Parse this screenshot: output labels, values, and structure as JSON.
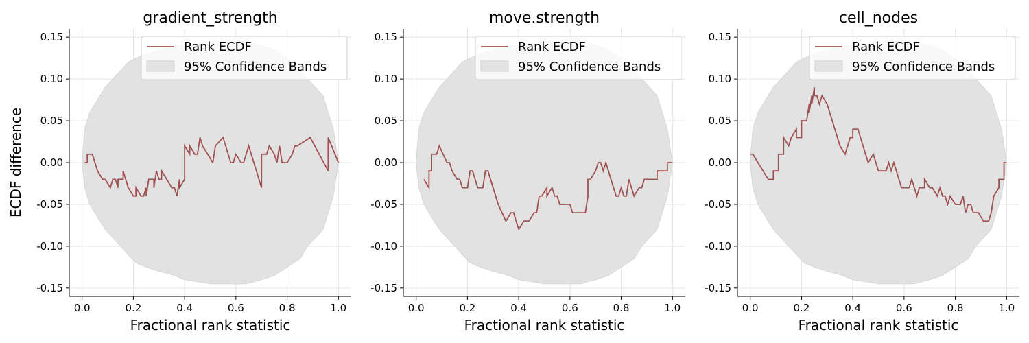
{
  "figure": {
    "ylabel": "ECDF difference"
  },
  "chart_data": [
    {
      "type": "line",
      "title": "gradient_strength",
      "xlabel": "Fractional rank statistic",
      "xlim": [
        -0.05,
        1.05
      ],
      "ylim": [
        -0.16,
        0.16
      ],
      "xticks": [
        0.0,
        0.2,
        0.4,
        0.6,
        0.8,
        1.0
      ],
      "yticks": [
        -0.15,
        -0.1,
        -0.05,
        0.0,
        0.05,
        0.1,
        0.15
      ],
      "grid": true,
      "legend": {
        "placement": "upper right",
        "entries": [
          "Rank ECDF",
          "95% Confidence Bands"
        ]
      },
      "series": [
        {
          "name": "Rank ECDF",
          "color": "#a05050",
          "x": [
            0.01,
            0.02,
            0.02,
            0.04,
            0.06,
            0.08,
            0.09,
            0.11,
            0.12,
            0.13,
            0.14,
            0.14,
            0.16,
            0.16,
            0.18,
            0.2,
            0.21,
            0.21,
            0.23,
            0.24,
            0.25,
            0.25,
            0.26,
            0.28,
            0.28,
            0.29,
            0.3,
            0.31,
            0.31,
            0.33,
            0.35,
            0.36,
            0.37,
            0.38,
            0.38,
            0.4,
            0.4,
            0.42,
            0.42,
            0.44,
            0.45,
            0.46,
            0.47,
            0.49,
            0.51,
            0.52,
            0.52,
            0.55,
            0.56,
            0.58,
            0.59,
            0.6,
            0.6,
            0.62,
            0.63,
            0.65,
            0.7,
            0.7,
            0.72,
            0.73,
            0.75,
            0.76,
            0.77,
            0.78,
            0.8,
            0.8,
            0.82,
            0.83,
            0.84,
            0.89,
            0.96,
            0.96,
            1.0
          ],
          "y": [
            0.0,
            0.0,
            0.01,
            0.01,
            -0.01,
            -0.02,
            -0.02,
            -0.03,
            -0.02,
            -0.02,
            -0.03,
            -0.02,
            -0.02,
            -0.01,
            -0.03,
            -0.04,
            -0.04,
            -0.03,
            -0.04,
            -0.04,
            -0.03,
            -0.04,
            -0.02,
            -0.02,
            -0.03,
            -0.01,
            -0.02,
            -0.02,
            -0.01,
            -0.02,
            -0.03,
            -0.03,
            -0.04,
            -0.02,
            -0.03,
            -0.02,
            0.02,
            0.01,
            0.02,
            0.01,
            0.01,
            0.03,
            0.02,
            0.01,
            0.0,
            0.02,
            0.02,
            0.03,
            0.02,
            0.0,
            0.0,
            0.01,
            0.01,
            0.0,
            0.0,
            0.02,
            -0.03,
            0.01,
            0.01,
            0.02,
            0.01,
            0.0,
            0.02,
            0.0,
            0.0,
            0.0,
            0.01,
            0.02,
            0.02,
            0.03,
            -0.01,
            0.03,
            0.0
          ]
        },
        {
          "name": "95% Confidence Bands",
          "color": "#d9d9d9",
          "x": [
            0.0,
            0.01,
            0.03,
            0.05,
            0.07,
            0.09,
            0.12,
            0.15,
            0.18,
            0.21,
            0.25,
            0.3,
            0.36,
            0.4,
            0.5,
            0.6,
            0.64,
            0.7,
            0.75,
            0.8,
            0.85,
            0.88,
            0.91,
            0.94,
            0.96,
            0.98,
            1.0
          ],
          "upper": [
            0.0,
            0.04,
            0.06,
            0.07,
            0.08,
            0.09,
            0.1,
            0.11,
            0.12,
            0.125,
            0.13,
            0.135,
            0.14,
            0.14,
            0.145,
            0.145,
            0.145,
            0.14,
            0.135,
            0.125,
            0.11,
            0.1,
            0.09,
            0.08,
            0.06,
            0.04,
            0.0
          ],
          "lower": [
            0.0,
            -0.03,
            -0.05,
            -0.06,
            -0.07,
            -0.08,
            -0.09,
            -0.1,
            -0.11,
            -0.12,
            -0.125,
            -0.13,
            -0.135,
            -0.14,
            -0.145,
            -0.145,
            -0.145,
            -0.14,
            -0.135,
            -0.125,
            -0.115,
            -0.1,
            -0.09,
            -0.08,
            -0.06,
            -0.04,
            0.0
          ]
        }
      ]
    },
    {
      "type": "line",
      "title": "move.strength",
      "xlabel": "Fractional rank statistic",
      "xlim": [
        -0.05,
        1.05
      ],
      "ylim": [
        -0.16,
        0.16
      ],
      "xticks": [
        0.0,
        0.2,
        0.4,
        0.6,
        0.8,
        1.0
      ],
      "yticks": [
        -0.15,
        -0.1,
        -0.05,
        0.0,
        0.05,
        0.1,
        0.15
      ],
      "grid": true,
      "legend": {
        "placement": "upper right",
        "entries": [
          "Rank ECDF",
          "95% Confidence Bands"
        ]
      },
      "series": [
        {
          "name": "Rank ECDF",
          "color": "#a05050",
          "x": [
            0.03,
            0.05,
            0.05,
            0.06,
            0.06,
            0.08,
            0.09,
            0.12,
            0.13,
            0.14,
            0.16,
            0.17,
            0.18,
            0.2,
            0.21,
            0.22,
            0.24,
            0.26,
            0.27,
            0.28,
            0.3,
            0.32,
            0.35,
            0.37,
            0.38,
            0.39,
            0.4,
            0.42,
            0.43,
            0.44,
            0.46,
            0.47,
            0.48,
            0.49,
            0.51,
            0.51,
            0.53,
            0.54,
            0.55,
            0.56,
            0.57,
            0.6,
            0.61,
            0.62,
            0.66,
            0.67,
            0.67,
            0.68,
            0.7,
            0.71,
            0.72,
            0.73,
            0.74,
            0.76,
            0.77,
            0.78,
            0.79,
            0.8,
            0.81,
            0.82,
            0.83,
            0.84,
            0.85,
            0.87,
            0.88,
            0.89,
            0.9,
            0.94,
            0.94,
            0.98,
            0.98,
            1.0
          ],
          "y": [
            -0.02,
            -0.03,
            -0.01,
            -0.01,
            0.01,
            0.01,
            0.02,
            0.0,
            0.0,
            -0.01,
            -0.02,
            -0.02,
            -0.03,
            -0.03,
            -0.01,
            -0.01,
            -0.03,
            -0.03,
            -0.01,
            -0.01,
            -0.03,
            -0.05,
            -0.07,
            -0.06,
            -0.06,
            -0.07,
            -0.08,
            -0.07,
            -0.07,
            -0.07,
            -0.06,
            -0.06,
            -0.04,
            -0.04,
            -0.03,
            -0.04,
            -0.03,
            -0.04,
            -0.04,
            -0.05,
            -0.05,
            -0.05,
            -0.06,
            -0.06,
            -0.06,
            -0.04,
            -0.02,
            -0.02,
            -0.01,
            0.0,
            0.0,
            -0.01,
            0.0,
            -0.02,
            -0.03,
            -0.04,
            -0.04,
            -0.03,
            -0.04,
            -0.04,
            -0.02,
            -0.03,
            -0.04,
            -0.03,
            -0.03,
            -0.02,
            -0.02,
            -0.02,
            -0.01,
            -0.01,
            0.0,
            0.0
          ]
        },
        {
          "name": "95% Confidence Bands",
          "color": "#d9d9d9",
          "x": [
            0.0,
            0.01,
            0.03,
            0.05,
            0.07,
            0.09,
            0.12,
            0.15,
            0.18,
            0.21,
            0.25,
            0.3,
            0.36,
            0.4,
            0.5,
            0.6,
            0.64,
            0.7,
            0.75,
            0.8,
            0.85,
            0.88,
            0.91,
            0.94,
            0.96,
            0.98,
            1.0
          ],
          "upper": [
            0.0,
            0.04,
            0.06,
            0.07,
            0.08,
            0.09,
            0.1,
            0.11,
            0.12,
            0.125,
            0.13,
            0.135,
            0.14,
            0.14,
            0.145,
            0.145,
            0.145,
            0.14,
            0.135,
            0.125,
            0.11,
            0.1,
            0.09,
            0.08,
            0.06,
            0.04,
            0.0
          ],
          "lower": [
            0.0,
            -0.03,
            -0.05,
            -0.06,
            -0.07,
            -0.08,
            -0.09,
            -0.1,
            -0.11,
            -0.12,
            -0.125,
            -0.13,
            -0.135,
            -0.14,
            -0.145,
            -0.145,
            -0.145,
            -0.14,
            -0.135,
            -0.125,
            -0.115,
            -0.1,
            -0.09,
            -0.08,
            -0.06,
            -0.04,
            0.0
          ]
        }
      ]
    },
    {
      "type": "line",
      "title": "cell_nodes",
      "xlabel": "Fractional rank statistic",
      "xlim": [
        -0.05,
        1.05
      ],
      "ylim": [
        -0.16,
        0.16
      ],
      "xticks": [
        0.0,
        0.2,
        0.4,
        0.6,
        0.8,
        1.0
      ],
      "yticks": [
        -0.15,
        -0.1,
        -0.05,
        0.0,
        0.05,
        0.1,
        0.15
      ],
      "grid": true,
      "legend": {
        "placement": "upper right",
        "entries": [
          "Rank ECDF",
          "95% Confidence Bands"
        ]
      },
      "series": [
        {
          "name": "Rank ECDF",
          "color": "#a05050",
          "x": [
            0.0,
            0.01,
            0.03,
            0.05,
            0.07,
            0.09,
            0.09,
            0.11,
            0.11,
            0.13,
            0.13,
            0.15,
            0.16,
            0.16,
            0.18,
            0.18,
            0.2,
            0.2,
            0.22,
            0.23,
            0.23,
            0.24,
            0.24,
            0.25,
            0.25,
            0.26,
            0.27,
            0.28,
            0.28,
            0.3,
            0.31,
            0.33,
            0.35,
            0.37,
            0.39,
            0.4,
            0.4,
            0.42,
            0.42,
            0.44,
            0.46,
            0.48,
            0.49,
            0.5,
            0.53,
            0.54,
            0.55,
            0.56,
            0.57,
            0.58,
            0.59,
            0.62,
            0.63,
            0.64,
            0.65,
            0.66,
            0.68,
            0.68,
            0.7,
            0.71,
            0.73,
            0.74,
            0.75,
            0.76,
            0.77,
            0.78,
            0.8,
            0.82,
            0.83,
            0.84,
            0.85,
            0.86,
            0.87,
            0.88,
            0.89,
            0.91,
            0.93,
            0.94,
            0.94,
            0.95,
            0.95,
            0.97,
            0.97,
            0.99,
            0.99,
            1.0
          ],
          "y": [
            0.01,
            0.01,
            0.0,
            -0.01,
            -0.02,
            -0.02,
            -0.01,
            -0.01,
            0.01,
            0.01,
            0.03,
            0.02,
            0.03,
            0.03,
            0.04,
            0.03,
            0.03,
            0.05,
            0.05,
            0.07,
            0.06,
            0.08,
            0.07,
            0.09,
            0.08,
            0.08,
            0.07,
            0.08,
            0.08,
            0.07,
            0.06,
            0.04,
            0.02,
            0.01,
            0.03,
            0.03,
            0.04,
            0.04,
            0.04,
            0.02,
            0.0,
            0.01,
            0.0,
            -0.01,
            -0.01,
            0.0,
            -0.01,
            0.0,
            -0.01,
            -0.02,
            -0.03,
            -0.03,
            -0.02,
            -0.03,
            -0.04,
            -0.03,
            -0.03,
            -0.02,
            -0.03,
            -0.03,
            -0.04,
            -0.03,
            -0.04,
            -0.04,
            -0.05,
            -0.04,
            -0.05,
            -0.05,
            -0.04,
            -0.06,
            -0.05,
            -0.05,
            -0.06,
            -0.06,
            -0.06,
            -0.07,
            -0.07,
            -0.06,
            -0.06,
            -0.04,
            -0.04,
            -0.03,
            -0.02,
            -0.02,
            0.0,
            0.0
          ]
        },
        {
          "name": "95% Confidence Bands",
          "color": "#d9d9d9",
          "x": [
            0.0,
            0.01,
            0.03,
            0.05,
            0.07,
            0.09,
            0.12,
            0.15,
            0.18,
            0.21,
            0.25,
            0.3,
            0.36,
            0.4,
            0.5,
            0.6,
            0.64,
            0.7,
            0.75,
            0.8,
            0.85,
            0.88,
            0.91,
            0.94,
            0.96,
            0.98,
            1.0
          ],
          "upper": [
            0.0,
            0.04,
            0.06,
            0.07,
            0.08,
            0.09,
            0.1,
            0.11,
            0.12,
            0.125,
            0.13,
            0.135,
            0.14,
            0.14,
            0.145,
            0.145,
            0.145,
            0.14,
            0.135,
            0.125,
            0.11,
            0.1,
            0.09,
            0.08,
            0.06,
            0.04,
            0.0
          ],
          "lower": [
            0.0,
            -0.03,
            -0.05,
            -0.06,
            -0.07,
            -0.08,
            -0.09,
            -0.1,
            -0.11,
            -0.12,
            -0.125,
            -0.13,
            -0.135,
            -0.14,
            -0.145,
            -0.145,
            -0.145,
            -0.14,
            -0.135,
            -0.125,
            -0.115,
            -0.1,
            -0.09,
            -0.08,
            -0.06,
            -0.04,
            0.0
          ]
        }
      ]
    }
  ]
}
